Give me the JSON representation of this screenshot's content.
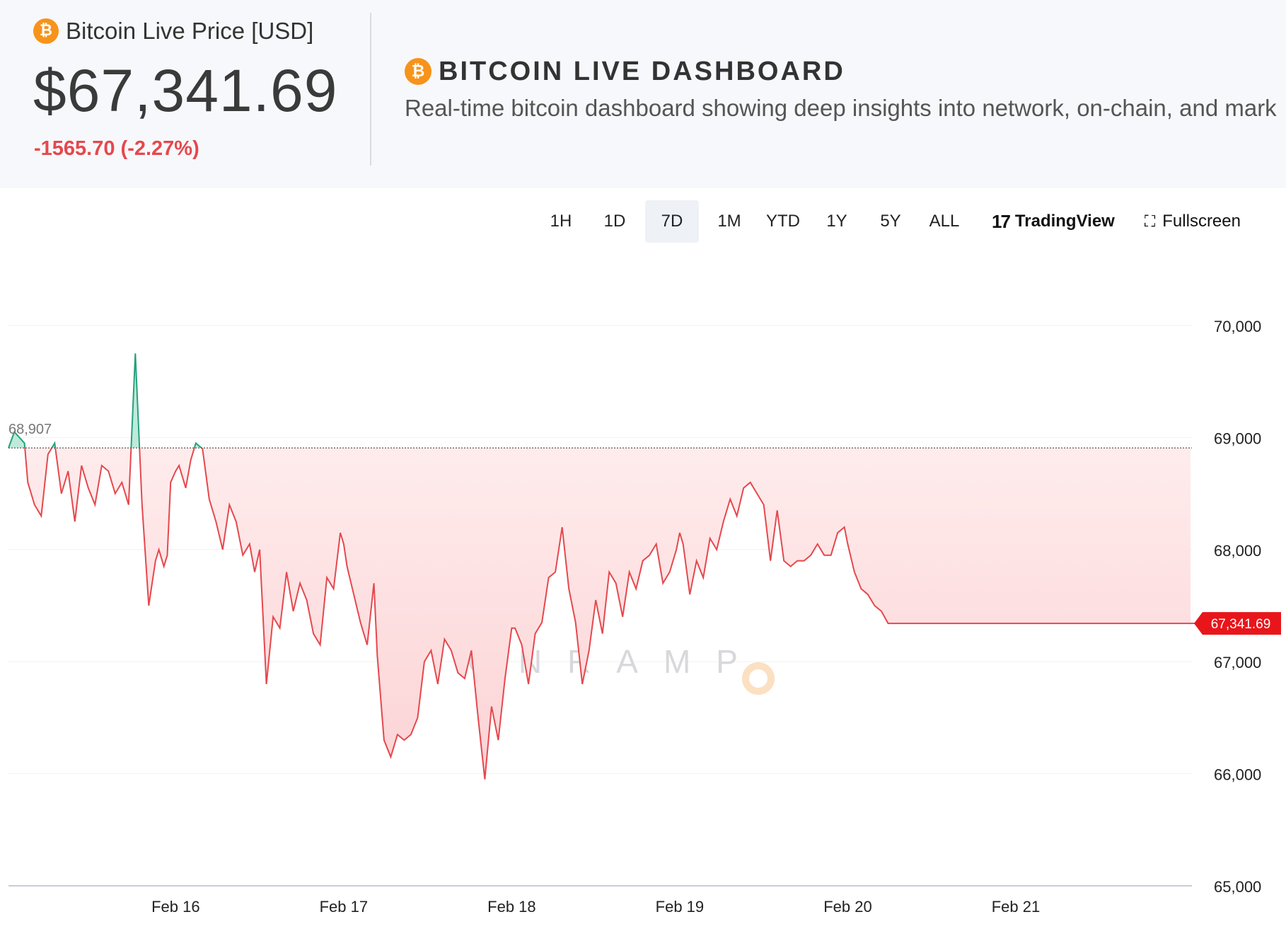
{
  "header": {
    "price_title": "Bitcoin Live Price [USD]",
    "price": "$67,341.69",
    "change": "-1565.70 (-2.27%)",
    "dashboard_title": "BITCOIN LIVE DASHBOARD",
    "dashboard_subtitle": "Real-time bitcoin dashboard showing deep insights into network, on-chain, and mark",
    "btc_symbol": "₿"
  },
  "toolbar": {
    "timeframes": [
      "1H",
      "1D",
      "7D",
      "1M",
      "YTD",
      "1Y",
      "5Y",
      "ALL"
    ],
    "active": "7D",
    "tradingview_label": "TradingView",
    "tradingview_logo": "17",
    "fullscreen_label": "Fullscreen",
    "fullscreen_icon": "⛶"
  },
  "colors": {
    "up": "#26a17b",
    "down": "#e5484d",
    "fill_down": "#fde2e3",
    "price_tag": "#e8161b",
    "accent_btc": "#f7931a"
  },
  "chart_data": {
    "type": "area",
    "baseline": 68907,
    "baseline_label": "68,907",
    "last_value": 67341.69,
    "last_label": "67,341.69",
    "ylim": [
      65000,
      70500
    ],
    "yticks": [
      65000,
      66000,
      67000,
      68000,
      69000,
      70000
    ],
    "ytick_labels": [
      "65,000",
      "66,000",
      "67,000",
      "68,000",
      "69,000",
      "70,000"
    ],
    "x_range": [
      -0.995,
      6.04
    ],
    "xticks": [
      0,
      1,
      2,
      3,
      4,
      5
    ],
    "xtick_labels": [
      "Feb 16",
      "Feb 17",
      "Feb 18",
      "Feb 19",
      "Feb 20",
      "Feb 21"
    ],
    "watermark": "ONRAMP",
    "grid": true,
    "x": [
      -0.995,
      -0.96,
      -0.9,
      -0.88,
      -0.84,
      -0.8,
      -0.76,
      -0.72,
      -0.68,
      -0.64,
      -0.6,
      -0.56,
      -0.52,
      -0.48,
      -0.44,
      -0.4,
      -0.36,
      -0.32,
      -0.28,
      -0.24,
      -0.2,
      -0.16,
      -0.12,
      -0.1,
      -0.07,
      -0.05,
      -0.03,
      0.0,
      0.02,
      0.06,
      0.09,
      0.12,
      0.16,
      0.2,
      0.24,
      0.28,
      0.32,
      0.36,
      0.4,
      0.44,
      0.47,
      0.5,
      0.54,
      0.58,
      0.62,
      0.66,
      0.7,
      0.74,
      0.78,
      0.82,
      0.86,
      0.9,
      0.94,
      0.98,
      1.0,
      1.02,
      1.06,
      1.1,
      1.14,
      1.18,
      1.2,
      1.24,
      1.28,
      1.32,
      1.36,
      1.4,
      1.44,
      1.48,
      1.52,
      1.56,
      1.6,
      1.64,
      1.68,
      1.72,
      1.76,
      1.8,
      1.84,
      1.88,
      1.92,
      1.96,
      2.0,
      2.02,
      2.06,
      2.1,
      2.14,
      2.18,
      2.22,
      2.26,
      2.3,
      2.34,
      2.38,
      2.42,
      2.46,
      2.5,
      2.54,
      2.58,
      2.62,
      2.66,
      2.7,
      2.74,
      2.78,
      2.82,
      2.86,
      2.9,
      2.94,
      2.98,
      3.0,
      3.02,
      3.06,
      3.1,
      3.14,
      3.18,
      3.22,
      3.26,
      3.3,
      3.34,
      3.38,
      3.42,
      3.46,
      3.5,
      3.54,
      3.58,
      3.62,
      3.66,
      3.7,
      3.74,
      3.78,
      3.82,
      3.86,
      3.9,
      3.94,
      3.98,
      4.0,
      4.04,
      4.08,
      4.12,
      4.16,
      4.2,
      4.24,
      4.28,
      4.32,
      4.36,
      4.4,
      4.44,
      4.48,
      4.52,
      4.56,
      4.6,
      4.64,
      4.68,
      4.72,
      4.76,
      4.8,
      4.84,
      4.88,
      4.92,
      4.96,
      5.0,
      5.04,
      5.08,
      5.12,
      5.16,
      5.2,
      5.24,
      5.28,
      5.32,
      5.36,
      5.4,
      5.44,
      5.48,
      5.52,
      5.56,
      5.6,
      5.64,
      5.68,
      5.72,
      5.76,
      5.8,
      5.84,
      5.88,
      5.92,
      5.96,
      6.0,
      6.04
    ],
    "y": [
      68907,
      69050,
      68950,
      68600,
      68400,
      68300,
      68850,
      68950,
      68500,
      68700,
      68250,
      68750,
      68550,
      68400,
      68750,
      68700,
      68500,
      68600,
      68400,
      69750,
      68400,
      67500,
      67900,
      68000,
      67850,
      67950,
      68600,
      68700,
      68750,
      68550,
      68800,
      68950,
      68900,
      68450,
      68250,
      68000,
      68400,
      68250,
      67950,
      68050,
      67800,
      68000,
      66800,
      67400,
      67300,
      67800,
      67450,
      67700,
      67550,
      67250,
      67150,
      67750,
      67650,
      68150,
      68050,
      67850,
      67600,
      67350,
      67150,
      67700,
      67050,
      66300,
      66150,
      66350,
      66300,
      66350,
      66500,
      67000,
      67100,
      66800,
      67200,
      67100,
      66900,
      66850,
      67100,
      66500,
      65950,
      66600,
      66300,
      66850,
      67300,
      67300,
      67150,
      66800,
      67250,
      67350,
      67750,
      67800,
      68200,
      67650,
      67350,
      66800,
      67100,
      67550,
      67250,
      67800,
      67700,
      67400,
      67800,
      67650,
      67900,
      67950,
      68050,
      67700,
      67800,
      68000,
      68150,
      68050,
      67600,
      67900,
      67750,
      68100,
      68000,
      68250,
      68450,
      68300,
      68550,
      68600,
      68500,
      68400,
      67900,
      68350,
      67900,
      67850,
      67900,
      67900,
      67950,
      68050,
      67950,
      67950,
      68150,
      68200,
      68050,
      67800,
      67650,
      67600,
      67500,
      67450,
      67341.69,
      67341.69,
      67341.69,
      67341.69,
      67341.69,
      67341.69,
      67341.69,
      67341.69,
      67341.69,
      67341.69,
      67341.69,
      67341.69,
      67341.69,
      67341.69,
      67341.69,
      67341.69,
      67341.69,
      67341.69,
      67341.69,
      67341.69,
      67341.69,
      67341.69,
      67341.69,
      67341.69,
      67341.69,
      67341.69,
      67341.69,
      67341.69,
      67341.69,
      67341.69,
      67341.69,
      67341.69,
      67341.69,
      67341.69,
      67341.69,
      67341.69,
      67341.69,
      67341.69,
      67341.69,
      67341.69,
      67341.69,
      67341.69,
      67341.69,
      67341.69,
      67341.69,
      67341.69
    ]
  }
}
